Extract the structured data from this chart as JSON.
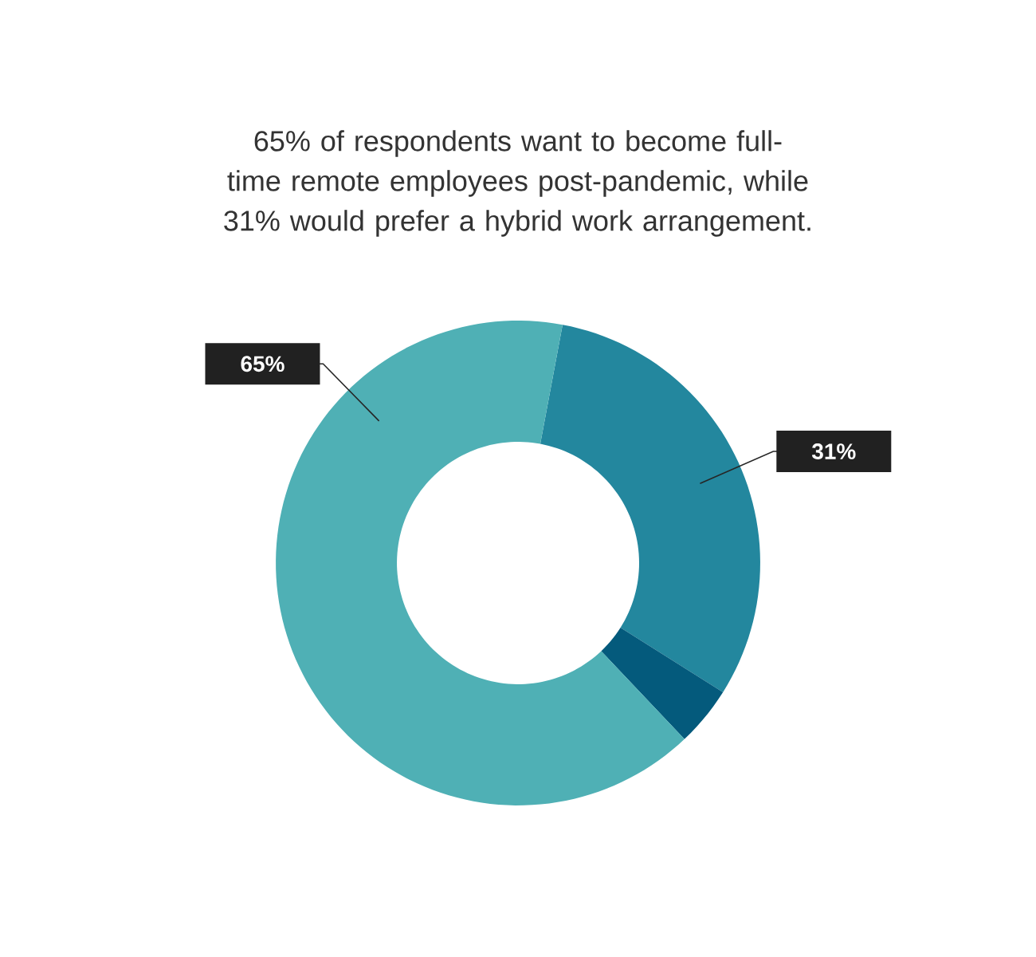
{
  "chart_data": {
    "type": "donut",
    "title": "65% of respondents want to become full-time remote employees post-pandemic, while 31% would prefer a hybrid work arrangement.",
    "categories": [
      null,
      null,
      null
    ],
    "values": [
      31,
      4,
      65
    ],
    "colors": [
      "#23879e",
      "#045a7c",
      "#4fb0b5"
    ],
    "value_labels": [
      "31%",
      null,
      "65%"
    ]
  }
}
